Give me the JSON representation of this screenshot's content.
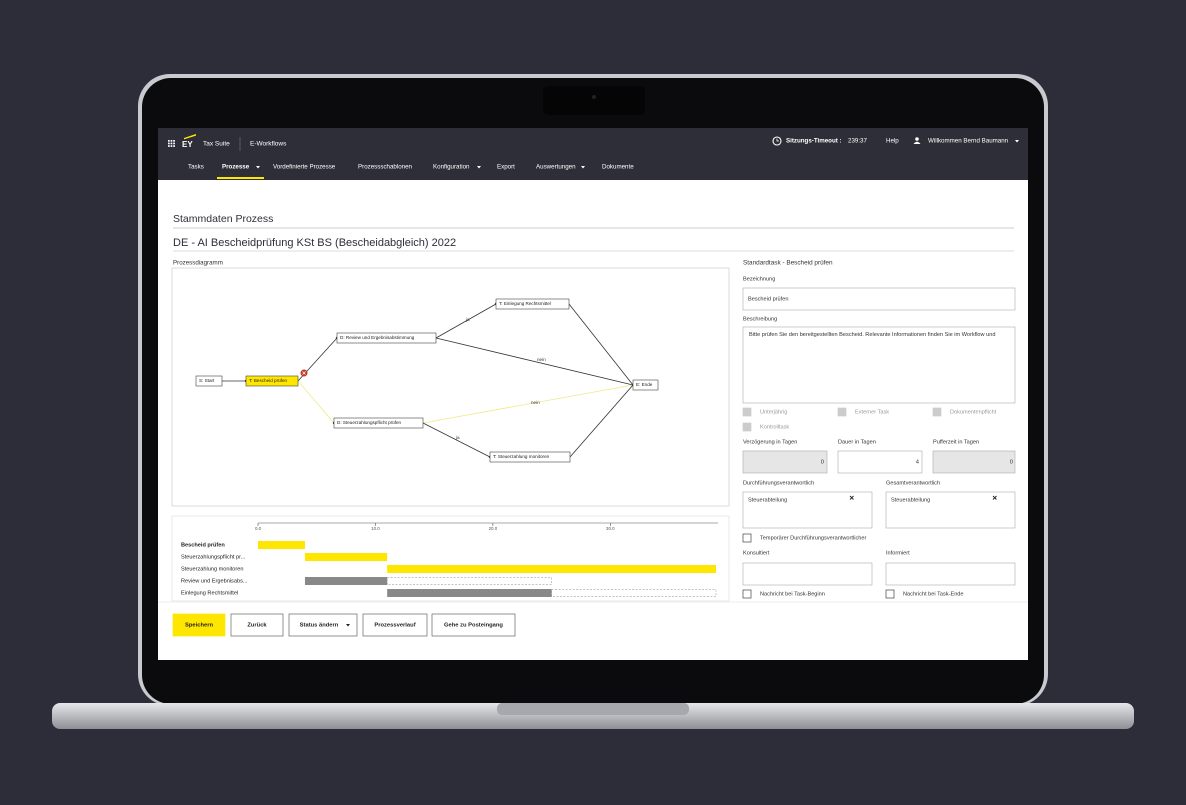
{
  "nav": {
    "brand": "EY",
    "suite": "Tax Suite",
    "app": "E-Workflows",
    "timeout_label": "Sitzungs-Timeout :",
    "timeout": "239:37",
    "help": "Help",
    "user": "Willkommen Bernd Baumann",
    "tabs": [
      "Tasks",
      "Prozesse",
      "Vordefinierte Prozesse",
      "Prozessschablonen",
      "Konfiguration",
      "Export",
      "Auswertungen",
      "Dokumente"
    ]
  },
  "page": {
    "section": "Stammdaten Prozess",
    "title": "DE - AI Bescheidprüfung KSt BS (Bescheidabgleich) 2022"
  },
  "diagram": {
    "label": "Prozessdiagramm",
    "nodes": [
      "S: Start",
      "T: Bescheid prüfen",
      "D: Review und Ergebnisabstimmung",
      "T: Einlegung Rechtsmittel",
      "E: Ende",
      "D: Steuerzahlungspflicht prüfen",
      "T: Steuerzahlung monitoren"
    ],
    "edge_labels": [
      "ja",
      "nein",
      "nein",
      "ja"
    ]
  },
  "gantt": {
    "xlim": [
      0,
      39
    ],
    "ticks": [
      {
        "value": 0,
        "label": "0.0"
      },
      {
        "value": 10,
        "label": "10.0"
      },
      {
        "value": 20,
        "label": "20.0"
      },
      {
        "value": 30,
        "label": "30.0"
      }
    ],
    "tasks": [
      {
        "name": "Bescheid prüfen",
        "start": 0,
        "duration": 4
      },
      {
        "name": "Steuerzahlungspflicht pr...",
        "start": 4,
        "duration": 7
      },
      {
        "name": "Steuerzahlung monitoren",
        "start": 11,
        "duration": 28
      },
      {
        "name": "Review und Ergebnisabs...",
        "start": 4,
        "duration": 7,
        "float": 14
      },
      {
        "name": "Einlegung Rechtsmittel",
        "start": 11,
        "duration": 14,
        "float": 14
      }
    ]
  },
  "form": {
    "title": "Standardtask - Bescheid prüfen",
    "bezeichnung_label": "Bezeichnung",
    "bezeichnung": "Bescheid prüfen",
    "beschreibung_label": "Beschreibung",
    "beschreibung": "Bitte prüfen Sie den bereitgestellten Bescheid. Relevante Informationen finden Sie im Workflow und",
    "flags": [
      "Unterjährig",
      "Externer Task",
      "Dokumentenpflicht",
      "Kontrolltask"
    ],
    "numbers": [
      {
        "label": "Verzögerung in Tagen",
        "value": 0
      },
      {
        "label": "Dauer in Tagen",
        "value": 4
      },
      {
        "label": "Pufferzeit in Tagen",
        "value": 0
      }
    ],
    "durchfuehrung_label": "Durchführungsverantwortlich",
    "durchfuehrung": "Steuerabteilung",
    "gesamt_label": "Gesamtverantwortlich",
    "gesamt": "Steuerabteilung",
    "temporaer": "Temporärer Durchführungsverantwortlicher",
    "konsultiert": "Konsultiert",
    "informiert": "Informiert",
    "nachricht_beginn": "Nachricht bei Task-Beginn",
    "nachricht_ende": "Nachricht bei Task-Ende"
  },
  "buttons": [
    "Speichern",
    "Zurück",
    "Status ändern",
    "Prozessverlauf",
    "Gehe zu Posteingang"
  ]
}
